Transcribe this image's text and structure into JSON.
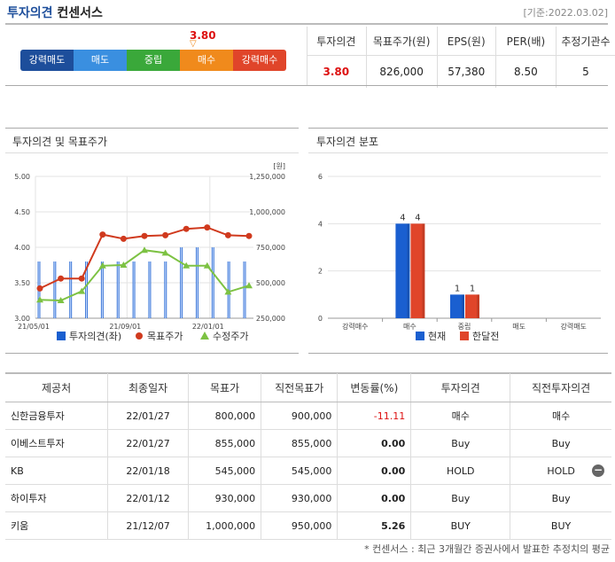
{
  "header": {
    "title_main": "투자의견",
    "title_sub": "컨센서스",
    "date": "[기준:2022.03.02]"
  },
  "rating_bar": {
    "value": "3.80",
    "marker": "▽",
    "segments": [
      {
        "label": "강력매도",
        "color": "#1d4e9b"
      },
      {
        "label": "매도",
        "color": "#3a8fe0"
      },
      {
        "label": "중립",
        "color": "#3aa83a"
      },
      {
        "label": "매수",
        "color": "#f08a1c"
      },
      {
        "label": "강력매수",
        "color": "#e0452a"
      }
    ]
  },
  "consensus": {
    "headers": [
      "투자의견",
      "목표주가(원)",
      "EPS(원)",
      "PER(배)",
      "추정기관수"
    ],
    "values": [
      "3.80",
      "826,000",
      "57,380",
      "8.50",
      "5"
    ]
  },
  "panels": {
    "left_title": "투자의견 및 목표주가",
    "right_title": "투자의견 분포"
  },
  "chart_data": [
    {
      "type": "line",
      "unit_label": "[원]",
      "x_ticks": [
        "21/05/01",
        "21/09/01",
        "22/01/01"
      ],
      "y_left_ticks": [
        "5.00",
        "4.50",
        "4.00",
        "3.50",
        "3.00"
      ],
      "y_left_range": [
        3.0,
        5.0
      ],
      "y_right_ticks": [
        "1,250,000",
        "1,000,000",
        "750,000",
        "500,000",
        "250,000"
      ],
      "y_right_range": [
        250000,
        1250000
      ],
      "grid": true,
      "legend_position": "bottom",
      "series": [
        {
          "name": "투자의견(좌)",
          "kind": "bar",
          "color": "#1a5fd0",
          "values": [
            3.8,
            3.8,
            3.8,
            3.8,
            3.8,
            3.8,
            3.8,
            3.8,
            3.8,
            4.0,
            4.0,
            4.0,
            3.8,
            3.8
          ]
        },
        {
          "name": "목표주가",
          "kind": "line",
          "color": "#d03a1e",
          "values": [
            460000,
            530000,
            530000,
            840000,
            810000,
            830000,
            835000,
            880000,
            890000,
            835000,
            830000
          ]
        },
        {
          "name": "수정주가",
          "kind": "line",
          "color": "#7dc243",
          "values": [
            380000,
            375000,
            440000,
            620000,
            625000,
            730000,
            710000,
            620000,
            620000,
            435000,
            480000
          ]
        }
      ]
    },
    {
      "type": "bar",
      "categories": [
        "강력매수",
        "매수",
        "중립",
        "매도",
        "강력매도"
      ],
      "y_ticks": [
        "6",
        "4",
        "2",
        "0"
      ],
      "ylim": [
        0,
        6
      ],
      "legend_position": "bottom",
      "series": [
        {
          "name": "현재",
          "color": "#1a5fd0",
          "values": [
            0,
            4,
            1,
            0,
            0
          ]
        },
        {
          "name": "한달전",
          "color": "#e0452a",
          "values": [
            0,
            4,
            1,
            0,
            0
          ]
        }
      ]
    }
  ],
  "brokers": {
    "headers": [
      "제공처",
      "최종일자",
      "목표가",
      "직전목표가",
      "변동률(%)",
      "투자의견",
      "직전투자의견"
    ],
    "rows": [
      {
        "provider": "신한금융투자",
        "date": "22/01/27",
        "target": "800,000",
        "prev_target": "900,000",
        "change": "-11.11",
        "opinion": "매수",
        "prev_opinion": "매수",
        "negative": true
      },
      {
        "provider": "이베스트투자",
        "date": "22/01/27",
        "target": "855,000",
        "prev_target": "855,000",
        "change": "0.00",
        "opinion": "Buy",
        "prev_opinion": "Buy",
        "negative": false
      },
      {
        "provider": "KB",
        "date": "22/01/18",
        "target": "545,000",
        "prev_target": "545,000",
        "change": "0.00",
        "opinion": "HOLD",
        "prev_opinion": "HOLD",
        "negative": false
      },
      {
        "provider": "하이투자",
        "date": "22/01/12",
        "target": "930,000",
        "prev_target": "930,000",
        "change": "0.00",
        "opinion": "Buy",
        "prev_opinion": "Buy",
        "negative": false
      },
      {
        "provider": "키움",
        "date": "21/12/07",
        "target": "1,000,000",
        "prev_target": "950,000",
        "change": "5.26",
        "opinion": "BUY",
        "prev_opinion": "BUY",
        "negative": false
      }
    ],
    "collapse_symbol": "−"
  },
  "footnote": "* 컨센서스 : 최근 3개월간 증권사에서 발표한 추정치의 평균"
}
